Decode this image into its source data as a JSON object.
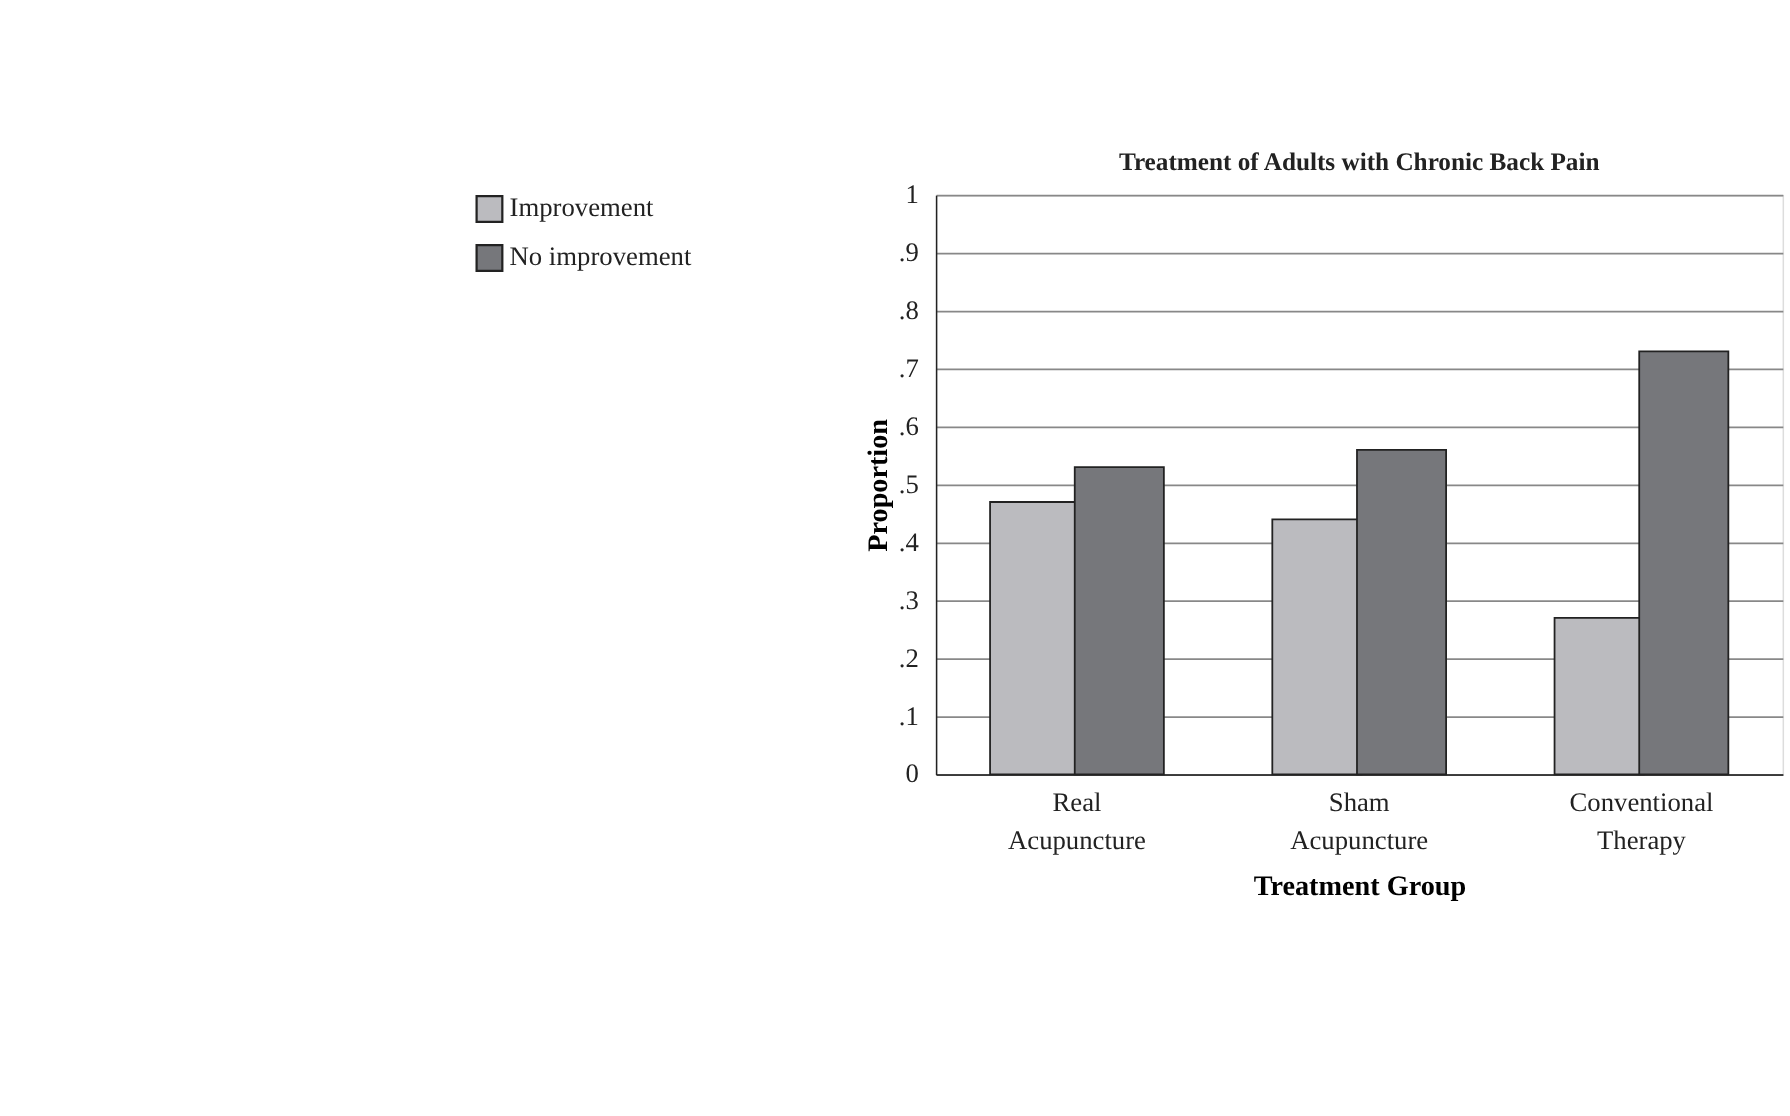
{
  "chart_data": {
    "type": "bar",
    "title": "Treatment of Adults with Chronic Back Pain",
    "xlabel": "Treatment Group",
    "ylabel": "Proportion",
    "categories": [
      "Real Acupuncture",
      "Sham Acupuncture",
      "Conventional Therapy"
    ],
    "series": [
      {
        "name": "Improvement",
        "color": "#bbbbbf",
        "values": [
          0.47,
          0.44,
          0.27
        ]
      },
      {
        "name": "No improvement",
        "color": "#76777b",
        "values": [
          0.53,
          0.56,
          0.73
        ]
      }
    ],
    "ylim": [
      0,
      1
    ],
    "yticks": [
      0,
      {
        "value": 0.1,
        "label": ".1"
      },
      {
        "value": 0.2,
        "label": ".2"
      },
      {
        "value": 0.3,
        "label": ".3"
      },
      {
        "value": 0.4,
        "label": ".4"
      },
      {
        "value": 0.5,
        "label": ".5"
      },
      {
        "value": 0.6,
        "label": ".6"
      },
      {
        "value": 0.7,
        "label": ".7"
      },
      {
        "value": 0.8,
        "label": ".8"
      },
      {
        "value": 0.9,
        "label": ".9"
      },
      1
    ],
    "grid": "y",
    "legend": "top left"
  }
}
